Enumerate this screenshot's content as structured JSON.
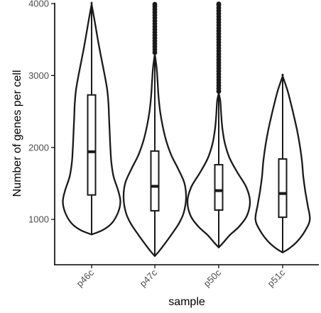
{
  "chart_data": {
    "type": "violin",
    "title": "",
    "xlabel": "sample",
    "ylabel": "Number of genes per cell",
    "categories": [
      "p46c",
      "p47c",
      "p50c",
      "p51c"
    ],
    "yticks": [
      1000,
      2000,
      3000,
      4000
    ],
    "ylim": [
      370,
      4010
    ],
    "grid": false,
    "legend": "none",
    "colors": {
      "line": "#1a1a1a",
      "fill": "#ffffff",
      "axis": "#000000",
      "tick_text": "#4d4d4d"
    },
    "series": [
      {
        "category": "p46c",
        "violin_profile": [
          [
            790,
            0.0
          ],
          [
            850,
            0.35
          ],
          [
            950,
            0.65
          ],
          [
            1100,
            0.85
          ],
          [
            1250,
            0.92
          ],
          [
            1400,
            0.85
          ],
          [
            1600,
            0.7
          ],
          [
            1800,
            0.63
          ],
          [
            2000,
            0.6
          ],
          [
            2200,
            0.58
          ],
          [
            2400,
            0.56
          ],
          [
            2600,
            0.54
          ],
          [
            2800,
            0.5
          ],
          [
            3000,
            0.42
          ],
          [
            3200,
            0.33
          ],
          [
            3400,
            0.24
          ],
          [
            3600,
            0.16
          ],
          [
            3800,
            0.08
          ],
          [
            3990,
            0.0
          ]
        ],
        "box": {
          "min": 790,
          "q1": 1340,
          "median": 1940,
          "q3": 2730,
          "max": 3990
        },
        "outliers": []
      },
      {
        "category": "p47c",
        "violin_profile": [
          [
            490,
            0.0
          ],
          [
            560,
            0.14
          ],
          [
            650,
            0.3
          ],
          [
            800,
            0.55
          ],
          [
            950,
            0.78
          ],
          [
            1100,
            0.93
          ],
          [
            1300,
            1.0
          ],
          [
            1500,
            0.95
          ],
          [
            1700,
            0.75
          ],
          [
            1900,
            0.52
          ],
          [
            2100,
            0.36
          ],
          [
            2300,
            0.25
          ],
          [
            2500,
            0.17
          ],
          [
            2700,
            0.12
          ],
          [
            2900,
            0.09
          ],
          [
            3100,
            0.06
          ],
          [
            3300,
            0.0
          ]
        ],
        "box": {
          "min": 490,
          "q1": 1120,
          "median": 1460,
          "q3": 1950,
          "max": 3290
        },
        "outliers": [
          3320,
          3360,
          3400,
          3440,
          3480,
          3520,
          3560,
          3600,
          3640,
          3680,
          3720,
          3760,
          3800,
          3840,
          3880,
          3920,
          3960,
          3990
        ]
      },
      {
        "category": "p50c",
        "violin_profile": [
          [
            610,
            0.0
          ],
          [
            680,
            0.15
          ],
          [
            780,
            0.35
          ],
          [
            900,
            0.65
          ],
          [
            1050,
            0.9
          ],
          [
            1250,
            1.0
          ],
          [
            1450,
            0.88
          ],
          [
            1650,
            0.6
          ],
          [
            1850,
            0.35
          ],
          [
            2050,
            0.2
          ],
          [
            2250,
            0.12
          ],
          [
            2450,
            0.08
          ],
          [
            2650,
            0.05
          ],
          [
            2750,
            0.0
          ]
        ],
        "box": {
          "min": 610,
          "q1": 1130,
          "median": 1400,
          "q3": 1760,
          "max": 2750
        },
        "outliers": [
          2780,
          2820,
          2860,
          2900,
          2940,
          2980,
          3020,
          3060,
          3100,
          3140,
          3180,
          3220,
          3260,
          3300,
          3340,
          3380,
          3420,
          3460,
          3500,
          3540,
          3580,
          3620,
          3660,
          3700,
          3740,
          3780,
          3820,
          3860,
          3900,
          3940,
          3980,
          3995
        ]
      },
      {
        "category": "p51c",
        "violin_profile": [
          [
            540,
            0.0
          ],
          [
            600,
            0.22
          ],
          [
            700,
            0.48
          ],
          [
            850,
            0.73
          ],
          [
            1000,
            0.87
          ],
          [
            1200,
            0.8
          ],
          [
            1400,
            0.72
          ],
          [
            1600,
            0.66
          ],
          [
            1800,
            0.62
          ],
          [
            2000,
            0.56
          ],
          [
            2200,
            0.48
          ],
          [
            2400,
            0.38
          ],
          [
            2600,
            0.27
          ],
          [
            2800,
            0.15
          ],
          [
            2990,
            0.0
          ]
        ],
        "box": {
          "min": 540,
          "q1": 1030,
          "median": 1360,
          "q3": 1840,
          "max": 2990
        },
        "outliers": []
      }
    ]
  }
}
